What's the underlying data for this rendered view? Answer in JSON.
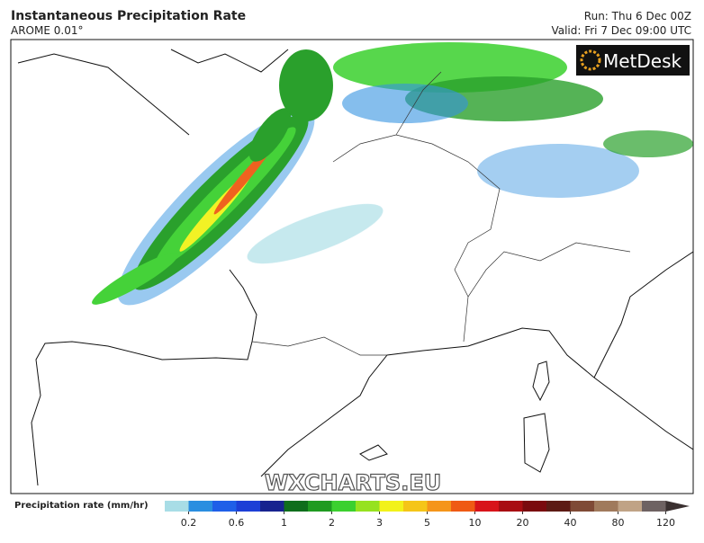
{
  "header": {
    "title": "Instantaneous Precipitation Rate",
    "subtitle": "AROME 0.01°",
    "run": "Run: Thu 6 Dec 00Z",
    "valid": "Valid: Fri 7 Dec 09:00 UTC"
  },
  "logo": "MetDesk",
  "watermark": "WXCHARTS.EU",
  "colorbar": {
    "label": "Precipitation rate (mm/hr)",
    "colors": [
      "#a8dde6",
      "#2a8ee0",
      "#1f5fe8",
      "#1d3fd6",
      "#17238f",
      "#0f6e1c",
      "#1f9b21",
      "#3bd02f",
      "#96e21f",
      "#f2f21a",
      "#f5c518",
      "#f5951a",
      "#ef5a14",
      "#d8141a",
      "#a80d12",
      "#7a0a0e",
      "#5c1a14",
      "#7f4a36",
      "#a07a5c",
      "#c0a386",
      "#6e6262",
      "#3a3030"
    ],
    "ticks": [
      0.2,
      0.6,
      1,
      2,
      3,
      5,
      10,
      20,
      40,
      80,
      120
    ]
  }
}
